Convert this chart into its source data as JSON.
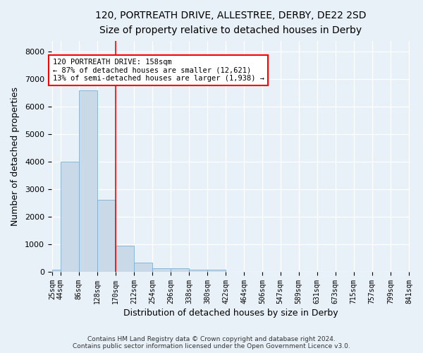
{
  "title_line1": "120, PORTREATH DRIVE, ALLESTREE, DERBY, DE22 2SD",
  "title_line2": "Size of property relative to detached houses in Derby",
  "xlabel": "Distribution of detached houses by size in Derby",
  "ylabel": "Number of detached properties",
  "bar_color": "#c9d9e8",
  "bar_edge_color": "#7bafd4",
  "vline_color": "red",
  "bin_edges": [
    25,
    44,
    86,
    128,
    170,
    212,
    254,
    296,
    338,
    380,
    422,
    464,
    506,
    547,
    589,
    631,
    673,
    715,
    757,
    799,
    841
  ],
  "bar_values": [
    70,
    4000,
    6600,
    2630,
    960,
    330,
    130,
    120,
    70,
    70,
    0,
    0,
    0,
    0,
    0,
    0,
    0,
    0,
    0,
    0
  ],
  "annotation_text": "120 PORTREATH DRIVE: 158sqm\n← 87% of detached houses are smaller (12,621)\n13% of semi-detached houses are larger (1,938) →",
  "annotation_box_facecolor": "white",
  "annotation_box_edgecolor": "red",
  "footer_text": "Contains HM Land Registry data © Crown copyright and database right 2024.\nContains public sector information licensed under the Open Government Licence v3.0.",
  "ylim": [
    0,
    8400
  ],
  "yticks": [
    0,
    1000,
    2000,
    3000,
    4000,
    5000,
    6000,
    7000,
    8000
  ],
  "background_color": "#e8f0f8",
  "grid_color": "white",
  "title1_fontsize": 10,
  "title2_fontsize": 9,
  "xlabel_fontsize": 9,
  "ylabel_fontsize": 9,
  "tick_fontsize": 7,
  "footer_fontsize": 6.5
}
